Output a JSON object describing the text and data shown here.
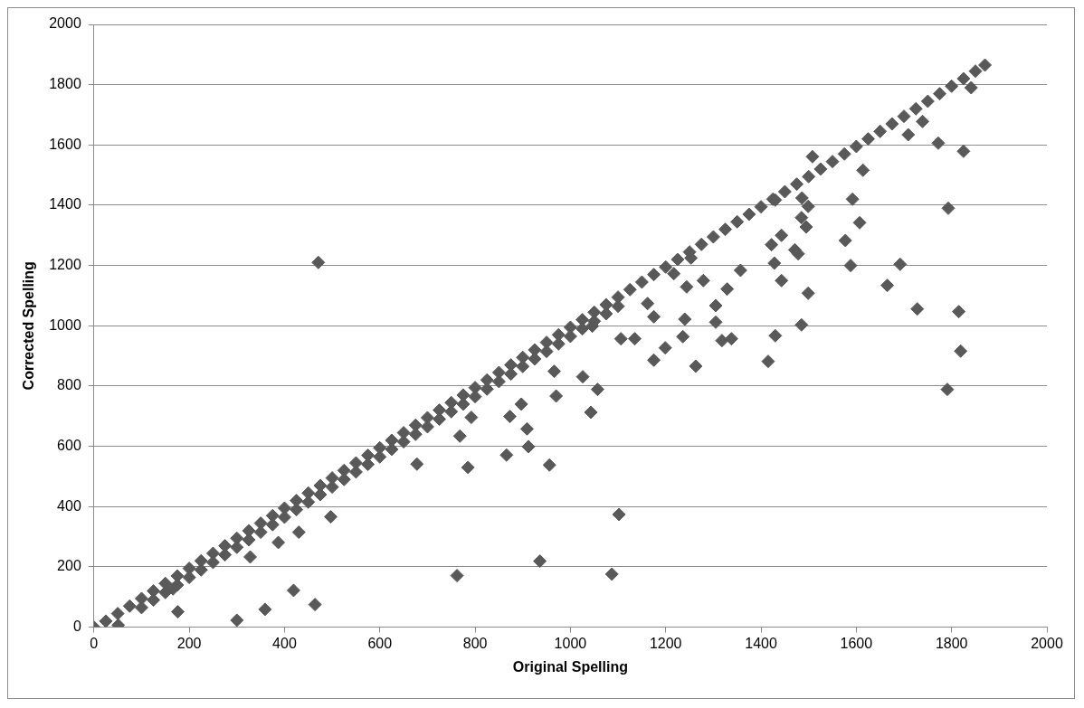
{
  "chart_data": {
    "type": "scatter",
    "xlabel": "Original Spelling",
    "ylabel": "Corrected Spelling",
    "xlim": [
      0,
      2000
    ],
    "xticks": [
      0,
      200,
      400,
      600,
      800,
      1000,
      1200,
      1400,
      1600,
      1800,
      2000
    ],
    "ylim": [
      0,
      2000
    ],
    "yticks": [
      0,
      200,
      400,
      600,
      800,
      1000,
      1200,
      1400,
      1600,
      1800,
      2000
    ],
    "grid": "y",
    "legend": false,
    "marker": "diamond",
    "series": [
      {
        "color": "#595959",
        "x": [
          0,
          25,
          50,
          75,
          100,
          125,
          150,
          175,
          200,
          225,
          250,
          275,
          300,
          325,
          350,
          375,
          400,
          425,
          450,
          475,
          500,
          525,
          550,
          575,
          600,
          625,
          650,
          675,
          700,
          725,
          750,
          775,
          800,
          825,
          850,
          875,
          900,
          925,
          950,
          975,
          1000,
          1025,
          1050,
          1075,
          1100,
          1125,
          1150,
          1175,
          1200,
          1225,
          1250,
          1275,
          1300,
          1325,
          1350,
          1375,
          1400,
          1425,
          1450,
          1475,
          1500,
          1525,
          1550,
          1575,
          1600,
          1625,
          1650,
          1675,
          1700,
          1725,
          1750,
          1775,
          1800,
          1825,
          1850,
          1870,
          100,
          125,
          150,
          175,
          200,
          225,
          250,
          275,
          300,
          325,
          350,
          375,
          400,
          425,
          450,
          475,
          500,
          525,
          550,
          575,
          600,
          625,
          650,
          675,
          700,
          725,
          750,
          775,
          800,
          825,
          850,
          875,
          900,
          925,
          950,
          975,
          1000,
          1025,
          1050,
          1075,
          1100,
          471,
          176,
          300,
          359,
          419,
          464,
          387,
          430,
          497,
          762,
          936,
          785,
          866,
          956,
          912,
          909,
          768,
          678,
          873,
          897,
          970,
          966,
          792,
          328,
          166,
          51,
          1087,
          1102,
          1043,
          1026,
          1057,
          1106,
          1135,
          1046,
          1175,
          1199,
          1162,
          1175,
          1217,
          1263,
          1236,
          1240,
          1253,
          1244,
          1279,
          1305,
          1305,
          1318,
          1338,
          1329,
          1357,
          1415,
          1430,
          1428,
          1422,
          1443,
          1443,
          1430,
          1471,
          1478,
          1486,
          1499,
          1485,
          1495,
          1499,
          1485,
          1508,
          1577,
          1588,
          1592,
          1607,
          1614,
          1665,
          1692,
          1728,
          1709,
          1739,
          1772,
          1793,
          1791,
          1815,
          1819,
          1825,
          1841
        ],
        "values": [
          0,
          20,
          45,
          70,
          95,
          120,
          145,
          170,
          195,
          220,
          245,
          270,
          295,
          320,
          345,
          370,
          395,
          420,
          445,
          470,
          495,
          520,
          545,
          570,
          595,
          620,
          645,
          670,
          695,
          720,
          745,
          770,
          795,
          820,
          845,
          870,
          895,
          920,
          945,
          970,
          995,
          1020,
          1045,
          1070,
          1095,
          1120,
          1145,
          1170,
          1195,
          1220,
          1245,
          1270,
          1295,
          1320,
          1345,
          1370,
          1395,
          1420,
          1445,
          1470,
          1495,
          1520,
          1545,
          1570,
          1595,
          1620,
          1645,
          1670,
          1695,
          1720,
          1745,
          1770,
          1795,
          1820,
          1845,
          1865,
          65,
          90,
          115,
          140,
          165,
          190,
          215,
          240,
          265,
          290,
          315,
          340,
          365,
          390,
          415,
          440,
          465,
          490,
          515,
          540,
          565,
          590,
          615,
          640,
          665,
          690,
          715,
          740,
          765,
          790,
          815,
          840,
          865,
          890,
          915,
          940,
          965,
          990,
          1015,
          1040,
          1065,
          1210,
          51,
          23,
          59,
          122,
          75,
          281,
          315,
          366,
          171,
          219,
          530,
          571,
          538,
          599,
          658,
          634,
          541,
          699,
          740,
          767,
          849,
          696,
          233,
          127,
          7,
          176,
          374,
          713,
          831,
          789,
          957,
          957,
          999,
          886,
          927,
          1074,
          1030,
          1173,
          866,
          964,
          1022,
          1225,
          1129,
          1150,
          1067,
          1012,
          951,
          957,
          1122,
          1184,
          882,
          967,
          1208,
          1269,
          1300,
          1150,
          1417,
          1252,
          1239,
          1424,
          1396,
          1359,
          1328,
          1108,
          1003,
          1561,
          1283,
          1200,
          1420,
          1342,
          1516,
          1134,
          1204,
          1056,
          1634,
          1678,
          1606,
          1390,
          789,
          1047,
          916,
          1579,
          1790
        ]
      }
    ]
  }
}
